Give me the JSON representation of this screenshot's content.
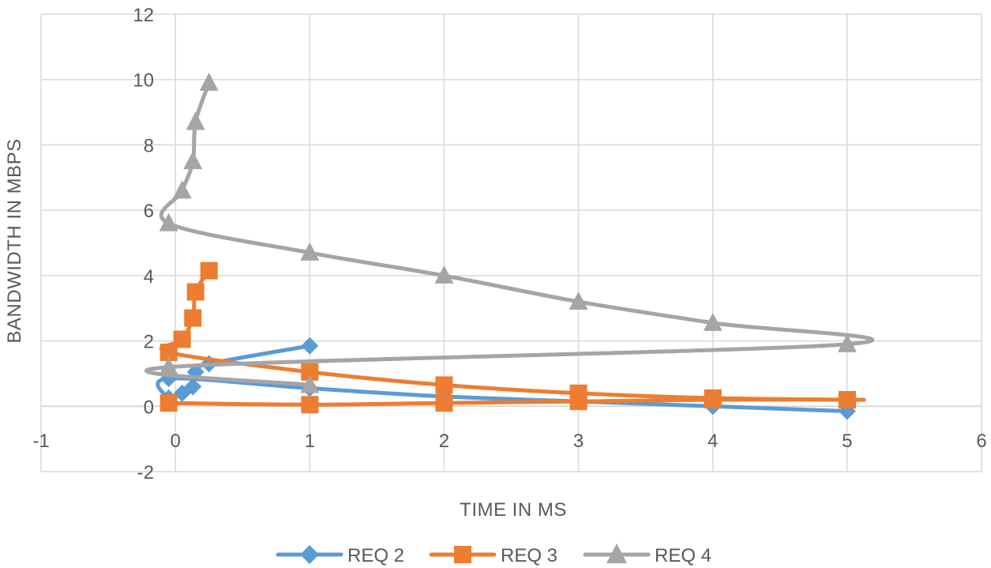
{
  "chart_data": {
    "type": "scatter",
    "title": "",
    "xlabel": "TIME IN MS",
    "ylabel": "BANDWIDTH IN MBPS",
    "xlim": [
      -1,
      6
    ],
    "ylim": [
      -2,
      12
    ],
    "xticks": [
      -1,
      0,
      1,
      2,
      3,
      4,
      5,
      6
    ],
    "yticks": [
      -2,
      0,
      2,
      4,
      6,
      8,
      10,
      12
    ],
    "grid": true,
    "smooth": true,
    "legend": "bottom",
    "series": [
      {
        "name": "REQ 2",
        "color": "#5b9bd5",
        "marker": "diamond",
        "x": [
          1,
          0.25,
          0.15,
          0.13,
          0.05,
          -0.05,
          -0.05,
          1,
          2,
          3,
          4,
          5
        ],
        "y": [
          1.85,
          1.3,
          1.05,
          0.6,
          0.4,
          0.25,
          0.85,
          0.55,
          0.3,
          0.15,
          0.0,
          -0.15
        ]
      },
      {
        "name": "REQ 3",
        "color": "#ed7d31",
        "marker": "square",
        "x": [
          0.25,
          0.15,
          0.13,
          0.05,
          -0.05,
          1,
          2,
          3,
          4,
          5,
          5,
          4,
          3,
          2,
          1,
          -0.05
        ],
        "y": [
          4.15,
          3.5,
          2.7,
          2.05,
          1.65,
          1.05,
          0.65,
          0.4,
          0.25,
          0.2,
          0.2,
          0.2,
          0.15,
          0.1,
          0.05,
          0.1
        ]
      },
      {
        "name": "REQ 4",
        "color": "#a5a5a5",
        "marker": "triangle",
        "x": [
          0.25,
          0.15,
          0.13,
          0.05,
          -0.05,
          1,
          2,
          3,
          4,
          5,
          -0.05,
          1
        ],
        "y": [
          9.9,
          8.7,
          7.5,
          6.6,
          5.6,
          4.7,
          4.0,
          3.2,
          2.55,
          1.9,
          1.2,
          0.65
        ]
      }
    ]
  }
}
